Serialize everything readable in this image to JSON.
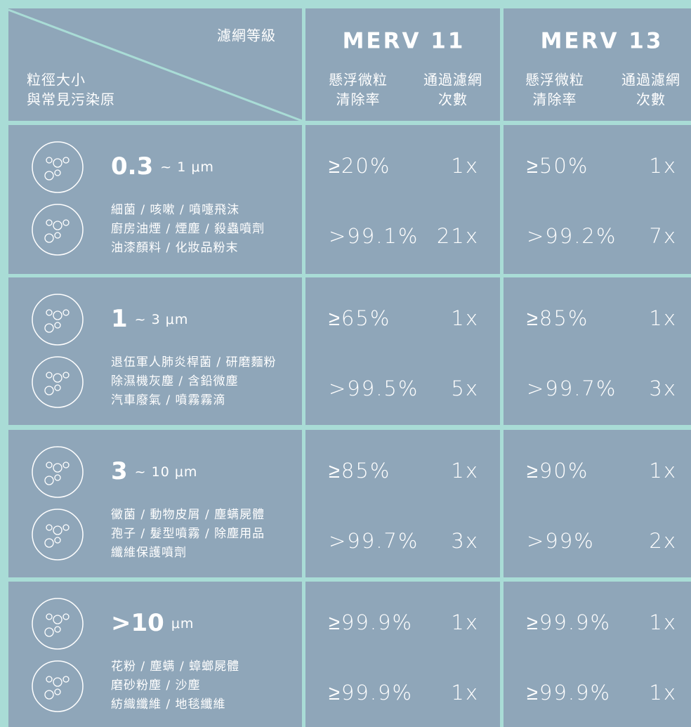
{
  "header": {
    "corner_top": "濾網等級",
    "corner_bottom": [
      "粒徑大小",
      "與常見污染原"
    ],
    "filters": [
      {
        "name": "MERV 11",
        "columns": [
          [
            "懸浮微粒",
            "清除率"
          ],
          [
            "通過濾網",
            "次數"
          ]
        ]
      },
      {
        "name": "MERV 13",
        "columns": [
          [
            "懸浮微粒",
            "清除率"
          ],
          [
            "通過濾網",
            "次數"
          ]
        ]
      }
    ]
  },
  "rows": [
    {
      "size_main": "0.3",
      "size_unit": "~ 1 μm",
      "pollutants": [
        "細菌 / 咳嗽 / 噴嚏飛沫",
        "廚房油煙 / 煙塵 / 殺蟲噴劑",
        "油漆顏料 / 化妝品粉末"
      ],
      "values": [
        [
          [
            "≥20%",
            "1x"
          ],
          [
            ">99.1%",
            "21x"
          ]
        ],
        [
          [
            "≥50%",
            "1x"
          ],
          [
            ">99.2%",
            "7x"
          ]
        ]
      ]
    },
    {
      "size_main": "1",
      "size_unit": "~ 3 μm",
      "pollutants": [
        "退伍軍人肺炎桿菌 / 研磨麵粉",
        "除濕機灰塵 / 含鉛微塵",
        "汽車廢氣 / 噴霧霧滴"
      ],
      "values": [
        [
          [
            "≥65%",
            "1x"
          ],
          [
            ">99.5%",
            "5x"
          ]
        ],
        [
          [
            "≥85%",
            "1x"
          ],
          [
            ">99.7%",
            "3x"
          ]
        ]
      ]
    },
    {
      "size_main": "3",
      "size_unit": "~ 10 μm",
      "pollutants": [
        "黴菌 / 動物皮屑 / 塵螨屍體",
        "孢子 / 髮型噴霧 / 除塵用品",
        "纖維保護噴劑"
      ],
      "values": [
        [
          [
            "≥85%",
            "1x"
          ],
          [
            ">99.7%",
            "3x"
          ]
        ],
        [
          [
            "≥90%",
            "1x"
          ],
          [
            ">99%",
            "2x"
          ]
        ]
      ]
    },
    {
      "size_main": ">10",
      "size_unit": "μm",
      "pollutants": [
        "花粉 / 塵螨 / 蟑螂屍體",
        "磨砂粉塵 / 沙塵",
        "紡織纖維 / 地毯纖維"
      ],
      "values": [
        [
          [
            "≥99.9%",
            "1x"
          ],
          [
            "≥99.9%",
            "1x"
          ]
        ],
        [
          [
            "≥99.9%",
            "1x"
          ],
          [
            "≥99.9%",
            "1x"
          ]
        ]
      ]
    }
  ]
}
